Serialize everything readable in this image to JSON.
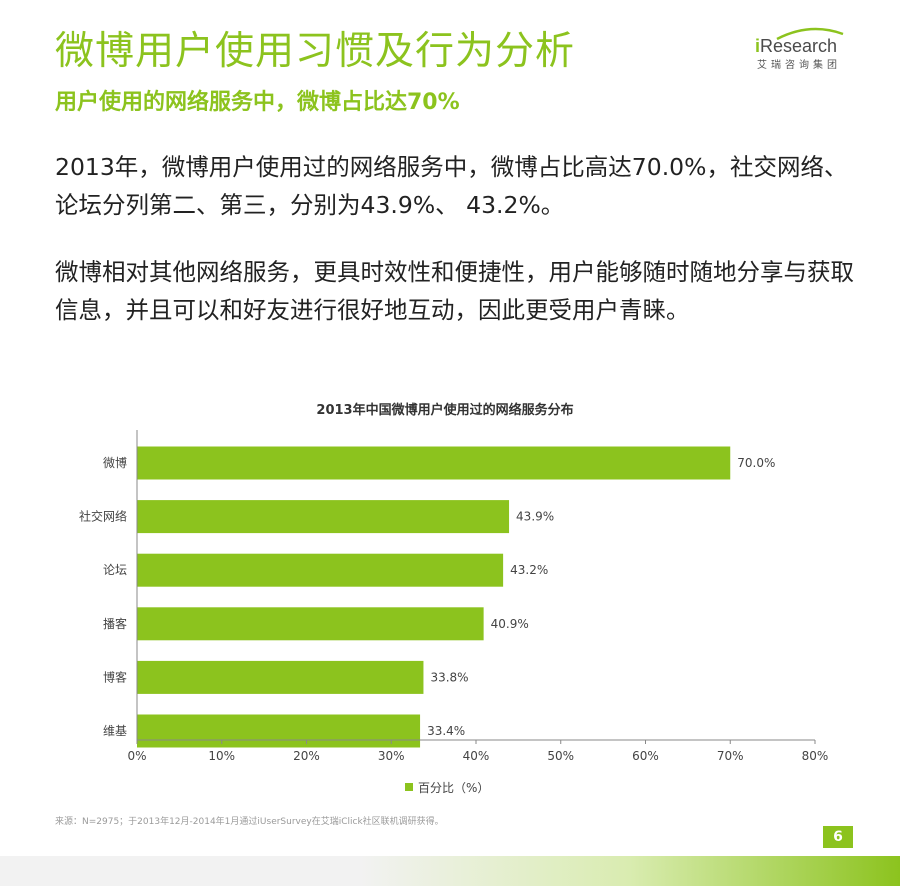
{
  "header": {
    "title": "微博用户使用习惯及行为分析",
    "subtitle": "用户使用的网络服务中，微博占比达70%"
  },
  "logo": {
    "letter": "i",
    "wordmark": "Research",
    "sub": "艾瑞咨询集团"
  },
  "body": {
    "para1": "2013年，微博用户使用过的网络服务中，微博占比高达70.0%，社交网络、论坛分列第二、第三，分别为43.9%、 43.2%。",
    "para2": "微博相对其他网络服务，更具时效性和便捷性，用户能够随时随地分享与获取信息，并且可以和好友进行很好地互动，因此更受用户青睐。"
  },
  "chart_data": {
    "type": "bar",
    "orientation": "horizontal",
    "title": "2013年中国微博用户使用过的网络服务分布",
    "categories": [
      "微博",
      "社交网络",
      "论坛",
      "播客",
      "博客",
      "维基"
    ],
    "values": [
      70.0,
      43.9,
      43.2,
      40.9,
      33.8,
      33.4
    ],
    "value_labels": [
      "70.0%",
      "43.9%",
      "43.2%",
      "40.9%",
      "33.8%",
      "33.4%"
    ],
    "xlim": [
      0,
      80
    ],
    "xticks": [
      "0%",
      "10%",
      "20%",
      "30%",
      "40%",
      "50%",
      "60%",
      "70%",
      "80%"
    ],
    "grid": false,
    "legend": {
      "position": "bottom",
      "label": "百分比（%）"
    },
    "bar_color": "#8cc31e"
  },
  "footer": {
    "source": "来源：N=2975；于2013年12月-2014年1月通过iUserSurvey在艾瑞iClick社区联机调研获得。",
    "page_number": "6"
  }
}
